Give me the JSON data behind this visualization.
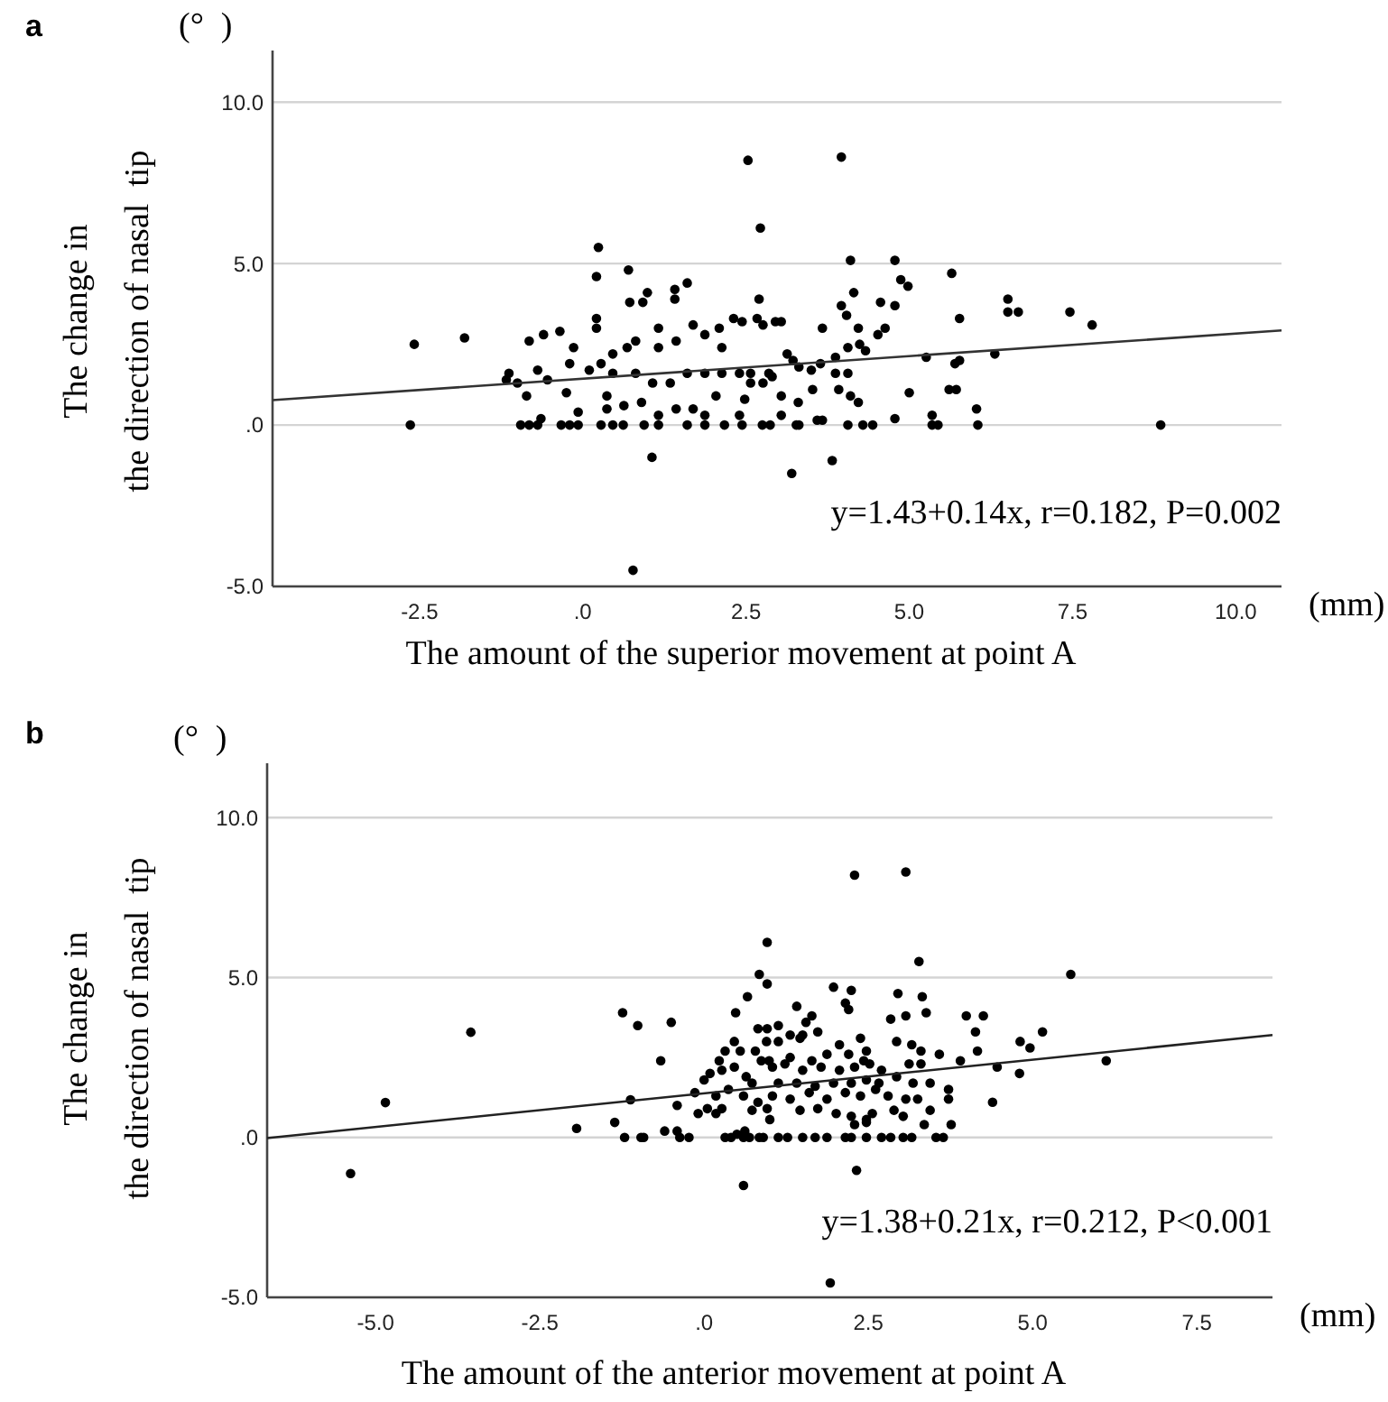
{
  "chart_data": [
    {
      "type": "scatter",
      "title": "a",
      "xlabel": "The amount of the superior movement at point A",
      "ylabel": "The change in\nthe direction of nasal  tip",
      "annotations": [
        "y=1.43+0.14x, r=0.182, P=0.002",
        "(°  )",
        "(mm)"
      ],
      "xlim": [
        -4.75,
        10.7
      ],
      "ylim": [
        -5,
        11.6
      ],
      "xticks": [
        {
          "value": -2.5,
          "label": "-2.5"
        },
        {
          "value": 0,
          "label": ".0"
        },
        {
          "value": 2.5,
          "label": "2.5"
        },
        {
          "value": 5,
          "label": "5.0"
        },
        {
          "value": 7.5,
          "label": "7.5"
        },
        {
          "value": 10,
          "label": "10.0"
        }
      ],
      "yticks": [
        {
          "value": -5,
          "label": "-5.0"
        },
        {
          "value": 0,
          "label": ".0"
        },
        {
          "value": 5,
          "label": "5.0"
        },
        {
          "value": 10,
          "label": "10.0"
        }
      ],
      "grid": "y",
      "series": [
        {
          "marker": "circle",
          "color": "#000000",
          "x": [
            -2.64,
            -2.58,
            -1.81,
            0.24,
            0.21,
            0.7,
            2.53,
            2.72,
            0.77,
            1.06,
            1.6,
            1.41,
            1.41,
            0.99,
            0.72,
            0.92,
            2.7,
            0.21,
            0.21,
            -0.35,
            -0.6,
            -0.82,
            -0.14,
            -1.13,
            -1.17,
            -1.0,
            -0.69,
            -0.54,
            -0.2,
            0.1,
            0.28,
            0.46,
            0.68,
            0.81,
            1.16,
            1.16,
            1.43,
            1.69,
            1.87,
            2.09,
            2.31,
            2.44,
            2.13,
            0.46,
            0.81,
            1.07,
            1.34,
            1.6,
            1.87,
            2.13,
            2.4,
            2.57,
            0.37,
            0.37,
            0.63,
            0.9,
            1.16,
            1.43,
            1.69,
            1.87,
            2.04,
            2.4,
            -0.25,
            -0.07,
            -0.95,
            -0.82,
            -0.69,
            -0.86,
            -0.64,
            -0.33,
            -0.2,
            -0.07,
            0.28,
            0.46,
            0.62,
            0.94,
            1.16,
            1.6,
            1.87,
            2.17,
            2.44,
            2.75,
            2.48,
            2.57,
            3.96,
            4.1,
            4.78,
            4.87,
            4.98,
            5.65,
            4.15,
            4.56,
            4.78,
            3.96,
            4.04,
            6.51,
            6.51,
            6.67,
            7.46,
            7.8,
            5.77,
            4.22,
            4.52,
            4.63,
            3.67,
            5.26,
            6.31,
            5.7,
            5.77,
            5.0,
            5.61,
            5.72,
            6.03,
            6.05,
            5.35,
            5.35,
            5.44,
            4.78,
            8.85,
            3.82,
            3.2,
            4.06,
            4.29,
            4.44,
            3.59,
            3.67,
            3.27,
            3.31,
            3.04,
            3.3,
            2.87,
            3.52,
            3.92,
            4.1,
            4.22,
            3.87,
            4.06,
            3.31,
            3.5,
            3.64,
            3.13,
            3.22,
            3.87,
            4.06,
            4.24,
            4.33,
            3.04,
            2.95,
            2.76,
            2.67,
            2.85,
            2.9,
            2.76,
            3.04
          ],
          "values": [
            0,
            2.5,
            2.7,
            5.5,
            4.6,
            4.8,
            8.2,
            6.1,
            -4.5,
            -1.0,
            4.4,
            4.2,
            3.9,
            4.1,
            3.8,
            3.8,
            3.9,
            3.3,
            3.0,
            2.9,
            2.8,
            2.6,
            2.4,
            1.6,
            1.4,
            1.3,
            1.7,
            1.4,
            1.9,
            1.7,
            1.9,
            2.2,
            2.4,
            2.6,
            3.0,
            2.4,
            2.6,
            3.1,
            2.8,
            3.0,
            3.3,
            3.2,
            2.4,
            1.6,
            1.6,
            1.3,
            1.3,
            1.6,
            1.6,
            1.6,
            1.6,
            1.6,
            0.9,
            0.5,
            0.6,
            0.7,
            0.3,
            0.5,
            0.5,
            0.3,
            0.9,
            0.3,
            1.0,
            0.4,
            0,
            0,
            0,
            0.9,
            0.2,
            0,
            0,
            0,
            0,
            0,
            0,
            0,
            0,
            0,
            0,
            0,
            0,
            0,
            0.8,
            1.3,
            8.3,
            5.1,
            5.1,
            4.5,
            4.3,
            4.7,
            4.1,
            3.8,
            3.7,
            3.7,
            3.4,
            3.9,
            3.5,
            3.5,
            3.5,
            3.1,
            3.3,
            3.0,
            2.8,
            3.0,
            3.0,
            2.1,
            2.2,
            1.9,
            2.0,
            1.0,
            1.1,
            1.1,
            0.5,
            0,
            0.3,
            0,
            0,
            0.2,
            0,
            -1.1,
            -1.5,
            0,
            0,
            0,
            0.15,
            0.15,
            0,
            0,
            0.3,
            0.7,
            0,
            1.1,
            1.1,
            0.9,
            0.7,
            1.6,
            1.6,
            1.8,
            1.7,
            1.9,
            2.2,
            2.0,
            2.1,
            2.4,
            2.5,
            2.3,
            3.2,
            3.2,
            3.1,
            3.3,
            1.6,
            1.5,
            1.3,
            0.9
          ]
        },
        {
          "type": "line",
          "color": "#333333",
          "x": [
            -4.75,
            10.7
          ],
          "values": [
            0.77,
            2.93
          ]
        }
      ]
    },
    {
      "type": "scatter",
      "title": "b",
      "xlabel": "The amount of the anterior movement at point A",
      "ylabel": "The change in\nthe direction of nasal  tip",
      "annotations": [
        "y=1.38+0.21x, r=0.212, P<0.001",
        "(°  )",
        "(mm)"
      ],
      "xlim": [
        -6.65,
        8.65
      ],
      "ylim": [
        -5,
        11.7
      ],
      "xticks": [
        {
          "value": -5,
          "label": "-5.0"
        },
        {
          "value": -2.5,
          "label": "-2.5"
        },
        {
          "value": 0,
          "label": ".0"
        },
        {
          "value": 2.5,
          "label": "2.5"
        },
        {
          "value": 5,
          "label": "5.0"
        },
        {
          "value": 7.5,
          "label": "7.5"
        }
      ],
      "yticks": [
        {
          "value": -5,
          "label": "-5.0"
        },
        {
          "value": 0,
          "label": ".0"
        },
        {
          "value": 5,
          "label": "5.0"
        },
        {
          "value": 10,
          "label": "10.0"
        }
      ],
      "grid": "y",
      "series": [
        {
          "marker": "circle",
          "color": "#000000",
          "x": [
            -5.38,
            -4.85,
            -3.55,
            -1.94,
            -1.36,
            -1.21,
            -0.96,
            -0.92,
            -1.12,
            -1.24,
            -1.01,
            -0.5,
            -0.66,
            -0.6,
            -0.41,
            -0.37,
            -0.23,
            -0.41,
            -0.14,
            0,
            0.09,
            -0.09,
            0.05,
            0.18,
            0.27,
            0.23,
            0.32,
            0.27,
            0.46,
            0.55,
            0.46,
            0.64,
            0.73,
            0.6,
            0.32,
            0.41,
            0.6,
            0.69,
            0.84,
            0.5,
            0.62,
            0.6,
            0.66,
            0.48,
            0.84,
            0.96,
            0.96,
            0.82,
            0.96,
            0.78,
            0.87,
            0.82,
            0.96,
            0.73,
            1.0,
            0.37,
            0.18,
            2.29,
            3.07,
            3.27,
            5.58,
            2.32,
            1.92,
            6.12,
            4.81,
            4.96,
            5.15,
            3.99,
            4.25,
            4.13,
            4.16,
            3.9,
            4.46,
            4.8,
            4.39,
            1.97,
            2.24,
            2.15,
            2.2,
            2.95,
            3.32,
            3.38,
            3.07,
            2.84,
            1.41,
            1.64,
            1.55,
            1.13,
            1.31,
            1.5,
            1.73,
            0.95,
            1.13,
            1.46,
            2.06,
            2.38,
            2.47,
            2.93,
            3.16,
            3.3,
            3.58,
            0.99,
            1.31,
            1.64,
            1.87,
            2.2,
            2.43,
            3.12,
            3.3,
            1.04,
            1.23,
            1.5,
            1.78,
            2.06,
            2.29,
            2.52,
            2.7,
            2.93,
            3.18,
            3.44,
            3.72,
            1.13,
            1.41,
            1.69,
            1.97,
            2.24,
            2.47,
            2.66,
            1.04,
            1.31,
            1.6,
            1.87,
            2.15,
            2.38,
            2.61,
            2.8,
            3.07,
            3.25,
            3.72,
            3.44,
            1.46,
            1.73,
            2.01,
            2.24,
            2.47,
            2.56,
            2.89,
            3.03,
            0.9,
            1.13,
            1.27,
            1.5,
            1.69,
            1.87,
            2.15,
            2.24,
            2.47,
            2.7,
            2.84,
            3.03,
            3.16,
            3.53,
            3.64,
            3.35,
            3.76,
            2.29,
            2.47
          ],
          "values": [
            -1.13,
            1.09,
            3.29,
            0.28,
            0.47,
            0,
            0,
            0,
            1.18,
            3.9,
            3.5,
            3.6,
            2.4,
            0.2,
            0.2,
            0,
            0,
            1.0,
            1.4,
            1.8,
            2.0,
            0.75,
            0.9,
            0.75,
            0.9,
            2.4,
            2.7,
            2.1,
            3.0,
            2.7,
            2.2,
            1.9,
            1.7,
            1.3,
            0,
            0,
            0,
            0,
            0,
            0.1,
            0.2,
            -1.5,
            4.4,
            3.9,
            5.1,
            4.8,
            6.1,
            3.4,
            3.4,
            2.7,
            2.4,
            1.1,
            0.9,
            0.85,
            0.56,
            1.5,
            1.3,
            8.2,
            8.3,
            5.5,
            5.1,
            -1.03,
            -4.55,
            2.4,
            3.0,
            2.8,
            3.3,
            3.8,
            3.8,
            3.3,
            2.7,
            2.4,
            2.2,
            2.0,
            1.1,
            4.7,
            4.6,
            4.2,
            4.0,
            4.5,
            4.4,
            3.9,
            3.8,
            3.7,
            4.1,
            3.8,
            3.6,
            3.5,
            3.2,
            3.2,
            3.3,
            3.0,
            3.0,
            3.1,
            2.9,
            3.1,
            2.7,
            3.0,
            2.9,
            2.7,
            2.6,
            2.4,
            2.5,
            2.4,
            2.6,
            2.6,
            2.4,
            2.3,
            2.3,
            2.2,
            2.3,
            2.1,
            2.2,
            2.1,
            2.2,
            2.3,
            2.1,
            1.9,
            1.7,
            1.7,
            1.5,
            1.7,
            1.7,
            1.6,
            1.7,
            1.7,
            1.8,
            1.7,
            1.3,
            1.2,
            1.4,
            1.2,
            1.4,
            1.3,
            1.5,
            1.3,
            1.2,
            1.2,
            1.2,
            0.85,
            0.85,
            0.9,
            0.75,
            0.66,
            0.56,
            0.75,
            0.85,
            0.66,
            0,
            0,
            0,
            0,
            0,
            0,
            0,
            0,
            0,
            0,
            0,
            0,
            0,
            0,
            0,
            0.4,
            0.4,
            0.4,
            0.47
          ]
        },
        {
          "type": "line",
          "color": "#222222",
          "x": [
            -6.65,
            8.65
          ],
          "values": [
            -0.02,
            3.2
          ]
        }
      ]
    }
  ]
}
